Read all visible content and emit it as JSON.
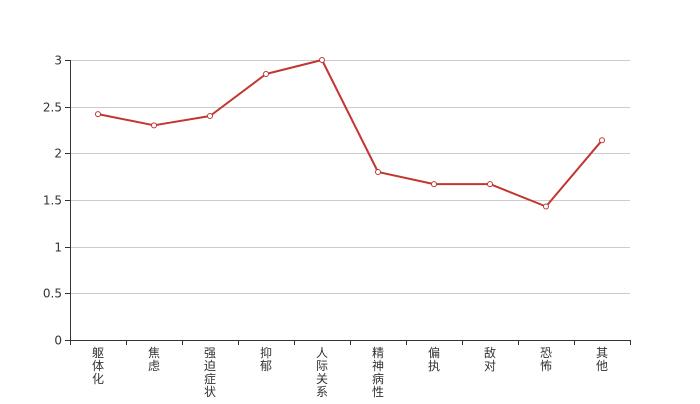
{
  "chart_data": {
    "type": "line",
    "title": "",
    "xlabel": "",
    "ylabel": "",
    "categories": [
      "躯体化",
      "焦虑",
      "强迫症状",
      "抑郁",
      "人际关系",
      "精神病性",
      "偏执",
      "敌对",
      "恐怖",
      "其他"
    ],
    "series": [
      {
        "values": [
          2.42,
          2.3,
          2.4,
          2.85,
          3.0,
          1.8,
          1.67,
          1.67,
          1.43,
          2.14
        ]
      }
    ],
    "ylim": [
      0,
      3
    ],
    "yticks": [
      0,
      0.5,
      1,
      1.5,
      2,
      2.5,
      3
    ],
    "ytick_labels": [
      "0",
      "0.5",
      "1",
      "1.5",
      "2",
      "2.5",
      "3"
    ],
    "grid": true,
    "legend": "none",
    "colors": {
      "line": "#c23531",
      "grid": "#cccccc",
      "axis": "#333333",
      "text": "#333333"
    }
  }
}
